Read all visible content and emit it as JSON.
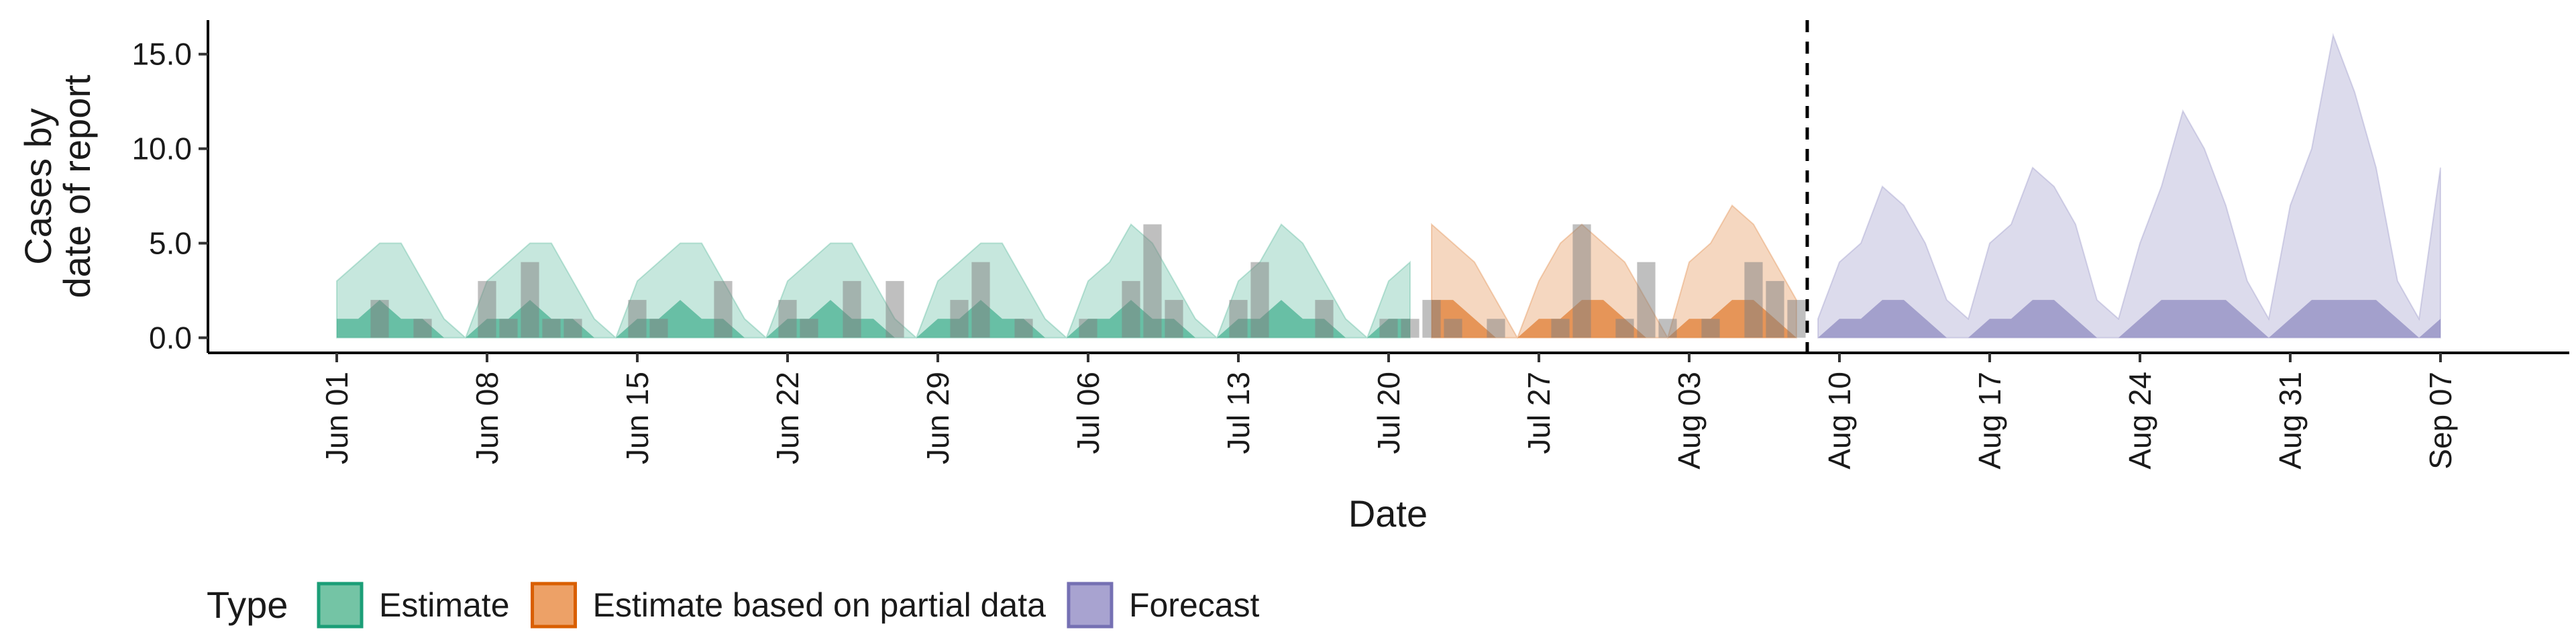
{
  "chart_data": {
    "type": "area",
    "xlabel": "Date",
    "ylabel_lines": [
      "Cases by",
      "date of report"
    ],
    "ylim": [
      -0.8,
      16.8
    ],
    "yticks": [
      0,
      5,
      10,
      15
    ],
    "ytick_labels": [
      "0.0",
      "5.0",
      "10.0",
      "15.0"
    ],
    "xlim": [
      "2021-05-26",
      "2021-09-13"
    ],
    "xticks": [
      "2021-06-01",
      "2021-06-08",
      "2021-06-15",
      "2021-06-22",
      "2021-06-29",
      "2021-07-06",
      "2021-07-13",
      "2021-07-20",
      "2021-07-27",
      "2021-08-03",
      "2021-08-10",
      "2021-08-17",
      "2021-08-24",
      "2021-08-31",
      "2021-09-07"
    ],
    "xtick_labels": [
      "Jun 01",
      "Jun 08",
      "Jun 15",
      "Jun 22",
      "Jun 29",
      "Jul 06",
      "Jul 13",
      "Jul 20",
      "Jul 27",
      "Aug 03",
      "Aug 10",
      "Aug 17",
      "Aug 24",
      "Aug 31",
      "Sep 07"
    ],
    "forecast_start": "2021-08-09",
    "legend": {
      "title": "Type",
      "position": "bottom-left",
      "entries": [
        {
          "label": "Estimate",
          "fill": "#74c4a5",
          "stroke": "#1b9e77"
        },
        {
          "label": "Estimate based on partial data",
          "fill": "#eda167",
          "stroke": "#d95f02"
        },
        {
          "label": "Forecast",
          "fill": "#a8a3d0",
          "stroke": "#7570b3"
        }
      ]
    },
    "colors": {
      "Estimate": "#1b9e77",
      "Estimate based on partial data": "#d95f02",
      "Forecast": "#7570b3",
      "observed_bar": "#808080",
      "forecast_line": "#000000"
    },
    "start_date": "2021-06-01",
    "series": [
      {
        "name": "Estimate",
        "x": [
          "2021-06-01",
          "2021-06-02",
          "2021-06-03",
          "2021-06-04",
          "2021-06-05",
          "2021-06-06",
          "2021-06-07",
          "2021-06-08",
          "2021-06-09",
          "2021-06-10",
          "2021-06-11",
          "2021-06-12",
          "2021-06-13",
          "2021-06-14",
          "2021-06-15",
          "2021-06-16",
          "2021-06-17",
          "2021-06-18",
          "2021-06-19",
          "2021-06-20",
          "2021-06-21",
          "2021-06-22",
          "2021-06-23",
          "2021-06-24",
          "2021-06-25",
          "2021-06-26",
          "2021-06-27",
          "2021-06-28",
          "2021-06-29",
          "2021-06-30",
          "2021-07-01",
          "2021-07-02",
          "2021-07-03",
          "2021-07-04",
          "2021-07-05",
          "2021-07-06",
          "2021-07-07",
          "2021-07-08",
          "2021-07-09",
          "2021-07-10",
          "2021-07-11",
          "2021-07-12",
          "2021-07-13",
          "2021-07-14",
          "2021-07-15",
          "2021-07-16",
          "2021-07-17",
          "2021-07-18",
          "2021-07-19",
          "2021-07-20",
          "2021-07-21"
        ],
        "lower90": [
          0,
          0,
          0,
          0,
          0,
          0,
          0,
          0,
          0,
          0,
          0,
          0,
          0,
          0,
          0,
          0,
          0,
          0,
          0,
          0,
          0,
          0,
          0,
          0,
          0,
          0,
          0,
          0,
          0,
          0,
          0,
          0,
          0,
          0,
          0,
          0,
          0,
          0,
          0,
          0,
          0,
          0,
          0,
          0,
          0,
          0,
          0,
          0,
          0,
          0,
          0
        ],
        "upper90": [
          3,
          4,
          5,
          5,
          3,
          1,
          0,
          3,
          4,
          5,
          5,
          3,
          1,
          0,
          3,
          4,
          5,
          5,
          3,
          1,
          0,
          3,
          4,
          5,
          5,
          3,
          1,
          0,
          3,
          4,
          5,
          5,
          3,
          1,
          0,
          3,
          4,
          6,
          5,
          3,
          1,
          0,
          3,
          4,
          6,
          5,
          3,
          1,
          0,
          3,
          4
        ],
        "lower50": [
          0,
          0,
          0,
          0,
          0,
          0,
          0,
          0,
          0,
          0,
          0,
          0,
          0,
          0,
          0,
          0,
          0,
          0,
          0,
          0,
          0,
          0,
          0,
          0,
          0,
          0,
          0,
          0,
          0,
          0,
          0,
          0,
          0,
          0,
          0,
          0,
          0,
          0,
          0,
          0,
          0,
          0,
          0,
          0,
          0,
          0,
          0,
          0,
          0,
          0,
          0
        ],
        "upper50": [
          1,
          1,
          2,
          1,
          1,
          0,
          0,
          1,
          1,
          2,
          1,
          1,
          0,
          0,
          1,
          1,
          2,
          1,
          1,
          0,
          0,
          1,
          1,
          2,
          1,
          1,
          0,
          0,
          1,
          1,
          2,
          1,
          1,
          0,
          0,
          1,
          1,
          2,
          1,
          1,
          0,
          0,
          1,
          1,
          2,
          1,
          1,
          0,
          0,
          1,
          1
        ]
      },
      {
        "name": "Estimate based on partial data",
        "x": [
          "2021-07-22",
          "2021-07-23",
          "2021-07-24",
          "2021-07-25",
          "2021-07-26",
          "2021-07-27",
          "2021-07-28",
          "2021-07-29",
          "2021-07-30",
          "2021-07-31",
          "2021-08-01",
          "2021-08-02",
          "2021-08-03",
          "2021-08-04",
          "2021-08-05",
          "2021-08-06",
          "2021-08-07",
          "2021-08-08"
        ],
        "lower90": [
          0,
          0,
          0,
          0,
          0,
          0,
          0,
          0,
          0,
          0,
          0,
          0,
          0,
          0,
          0,
          0,
          0,
          0
        ],
        "upper90": [
          6,
          5,
          4,
          2,
          0,
          3,
          5,
          6,
          5,
          4,
          2,
          0,
          4,
          5,
          7,
          6,
          4,
          2
        ],
        "lower50": [
          0,
          0,
          0,
          0,
          0,
          0,
          0,
          0,
          0,
          0,
          0,
          0,
          0,
          0,
          0,
          0,
          0,
          0
        ],
        "upper50": [
          2,
          2,
          1,
          0,
          0,
          1,
          1,
          2,
          2,
          1,
          0,
          0,
          1,
          1,
          2,
          2,
          1,
          0
        ]
      },
      {
        "name": "Forecast",
        "x": [
          "2021-08-09",
          "2021-08-10",
          "2021-08-11",
          "2021-08-12",
          "2021-08-13",
          "2021-08-14",
          "2021-08-15",
          "2021-08-16",
          "2021-08-17",
          "2021-08-18",
          "2021-08-19",
          "2021-08-20",
          "2021-08-21",
          "2021-08-22",
          "2021-08-23",
          "2021-08-24",
          "2021-08-25",
          "2021-08-26",
          "2021-08-27",
          "2021-08-28",
          "2021-08-29",
          "2021-08-30",
          "2021-08-31",
          "2021-09-01",
          "2021-09-02",
          "2021-09-03",
          "2021-09-04",
          "2021-09-05",
          "2021-09-06",
          "2021-09-07"
        ],
        "lower90": [
          0,
          0,
          0,
          0,
          0,
          0,
          0,
          0,
          0,
          0,
          0,
          0,
          0,
          0,
          0,
          0,
          0,
          0,
          0,
          0,
          0,
          0,
          0,
          0,
          0,
          0,
          0,
          0,
          0,
          0
        ],
        "upper90": [
          1,
          4,
          5,
          8,
          7,
          5,
          2,
          1,
          5,
          6,
          9,
          8,
          6,
          2,
          1,
          5,
          8,
          12,
          10,
          7,
          3,
          1,
          7,
          10,
          16,
          13,
          9,
          3,
          1,
          9
        ],
        "lower50": [
          0,
          0,
          0,
          0,
          0,
          0,
          0,
          0,
          0,
          0,
          0,
          0,
          0,
          0,
          0,
          0,
          0,
          0,
          0,
          0,
          0,
          0,
          0,
          0,
          0,
          0,
          0,
          0,
          0,
          0
        ],
        "upper50": [
          0,
          1,
          1,
          2,
          2,
          1,
          0,
          0,
          1,
          1,
          2,
          2,
          1,
          0,
          0,
          1,
          2,
          2,
          2,
          2,
          1,
          0,
          1,
          2,
          2,
          2,
          2,
          1,
          0,
          1
        ]
      }
    ],
    "observed": {
      "name": "Reported cases",
      "x": [
        "2021-06-01",
        "2021-06-02",
        "2021-06-03",
        "2021-06-04",
        "2021-06-05",
        "2021-06-06",
        "2021-06-07",
        "2021-06-08",
        "2021-06-09",
        "2021-06-10",
        "2021-06-11",
        "2021-06-12",
        "2021-06-13",
        "2021-06-14",
        "2021-06-15",
        "2021-06-16",
        "2021-06-17",
        "2021-06-18",
        "2021-06-19",
        "2021-06-20",
        "2021-06-21",
        "2021-06-22",
        "2021-06-23",
        "2021-06-24",
        "2021-06-25",
        "2021-06-26",
        "2021-06-27",
        "2021-06-28",
        "2021-06-29",
        "2021-06-30",
        "2021-07-01",
        "2021-07-02",
        "2021-07-03",
        "2021-07-04",
        "2021-07-05",
        "2021-07-06",
        "2021-07-07",
        "2021-07-08",
        "2021-07-09",
        "2021-07-10",
        "2021-07-11",
        "2021-07-12",
        "2021-07-13",
        "2021-07-14",
        "2021-07-15",
        "2021-07-16",
        "2021-07-17",
        "2021-07-18",
        "2021-07-19",
        "2021-07-20",
        "2021-07-21",
        "2021-07-22",
        "2021-07-23",
        "2021-07-24",
        "2021-07-25",
        "2021-07-26",
        "2021-07-27",
        "2021-07-28",
        "2021-07-29",
        "2021-07-30",
        "2021-07-31",
        "2021-08-01",
        "2021-08-02",
        "2021-08-03",
        "2021-08-04",
        "2021-08-05",
        "2021-08-06",
        "2021-08-07",
        "2021-08-08"
      ],
      "values": [
        0,
        0,
        2,
        0,
        1,
        0,
        0,
        3,
        1,
        4,
        1,
        1,
        0,
        0,
        2,
        1,
        0,
        0,
        3,
        0,
        0,
        2,
        1,
        0,
        3,
        0,
        3,
        0,
        0,
        2,
        4,
        0,
        1,
        0,
        0,
        1,
        0,
        3,
        6,
        2,
        0,
        0,
        2,
        4,
        0,
        0,
        2,
        0,
        0,
        1,
        1,
        2,
        1,
        0,
        1,
        0,
        0,
        1,
        6,
        0,
        1,
        4,
        1,
        0,
        1,
        0,
        4,
        3,
        2
      ]
    }
  }
}
